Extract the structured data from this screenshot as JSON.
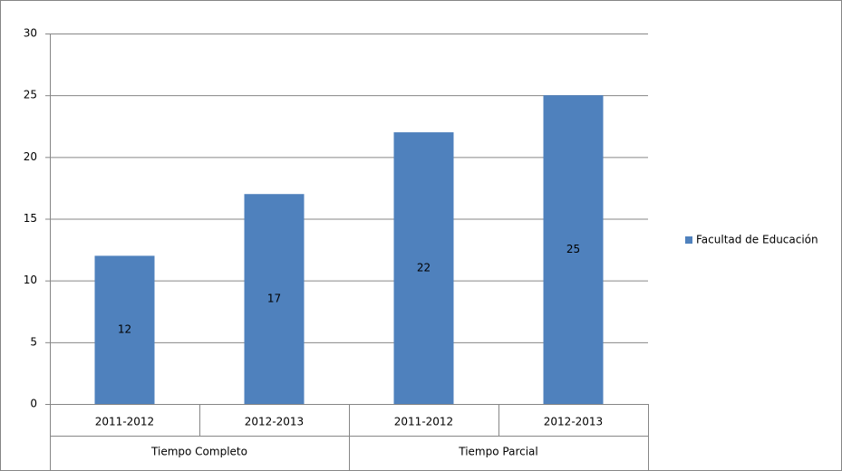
{
  "chart_data": {
    "type": "bar",
    "groups": [
      {
        "label": "Tiempo Completo",
        "categories": [
          "2011-2012",
          "2012-2013"
        ]
      },
      {
        "label": "Tiempo Parcial",
        "categories": [
          "2011-2012",
          "2012-2013"
        ]
      }
    ],
    "series": [
      {
        "name": "Facultad de Educación",
        "color": "#4f81bd",
        "values": [
          12,
          17,
          22,
          25
        ]
      }
    ],
    "ylim": [
      0,
      30
    ],
    "yticks": [
      0,
      5,
      10,
      15,
      20,
      25,
      30
    ],
    "grid": true,
    "legend": "right"
  }
}
